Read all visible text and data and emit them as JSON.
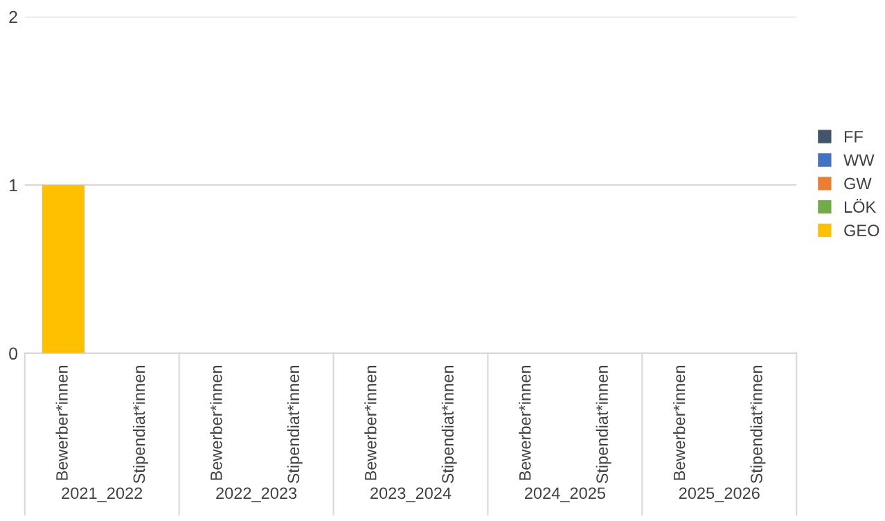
{
  "chart_data": {
    "type": "bar",
    "stacked": true,
    "categories": [
      "Bewerber*innen",
      "Stipendiat*innen",
      "Bewerber*innen",
      "Stipendiat*innen",
      "Bewerber*innen",
      "Stipendiat*innen",
      "Bewerber*innen",
      "Stipendiat*innen",
      "Bewerber*innen",
      "Stipendiat*innen"
    ],
    "annotations": [
      "2021_2022",
      "2022_2023",
      "2023_2024",
      "2024_2025",
      "2025_2026"
    ],
    "series": [
      {
        "name": "GEO",
        "color": "#ffc000",
        "values": [
          1,
          0,
          0,
          0,
          0,
          0,
          0,
          0,
          0,
          0
        ]
      },
      {
        "name": "LÖK",
        "color": "#70ad47",
        "values": [
          0,
          0,
          0,
          0,
          0,
          0,
          0,
          0,
          0,
          0
        ]
      },
      {
        "name": "GW",
        "color": "#ed7d31",
        "values": [
          0,
          0,
          0,
          0,
          0,
          0,
          0,
          0,
          0,
          0
        ]
      },
      {
        "name": "WW",
        "color": "#4472c4",
        "values": [
          0,
          0,
          0,
          0,
          0,
          0,
          0,
          0,
          0,
          0
        ]
      },
      {
        "name": "FF",
        "color": "#44546a",
        "values": [
          0,
          0,
          0,
          0,
          0,
          0,
          0,
          0,
          0,
          0
        ]
      }
    ],
    "ylim": [
      0,
      2
    ],
    "yticks": [
      0,
      1,
      2
    ],
    "grid": "y",
    "legend": "right"
  }
}
